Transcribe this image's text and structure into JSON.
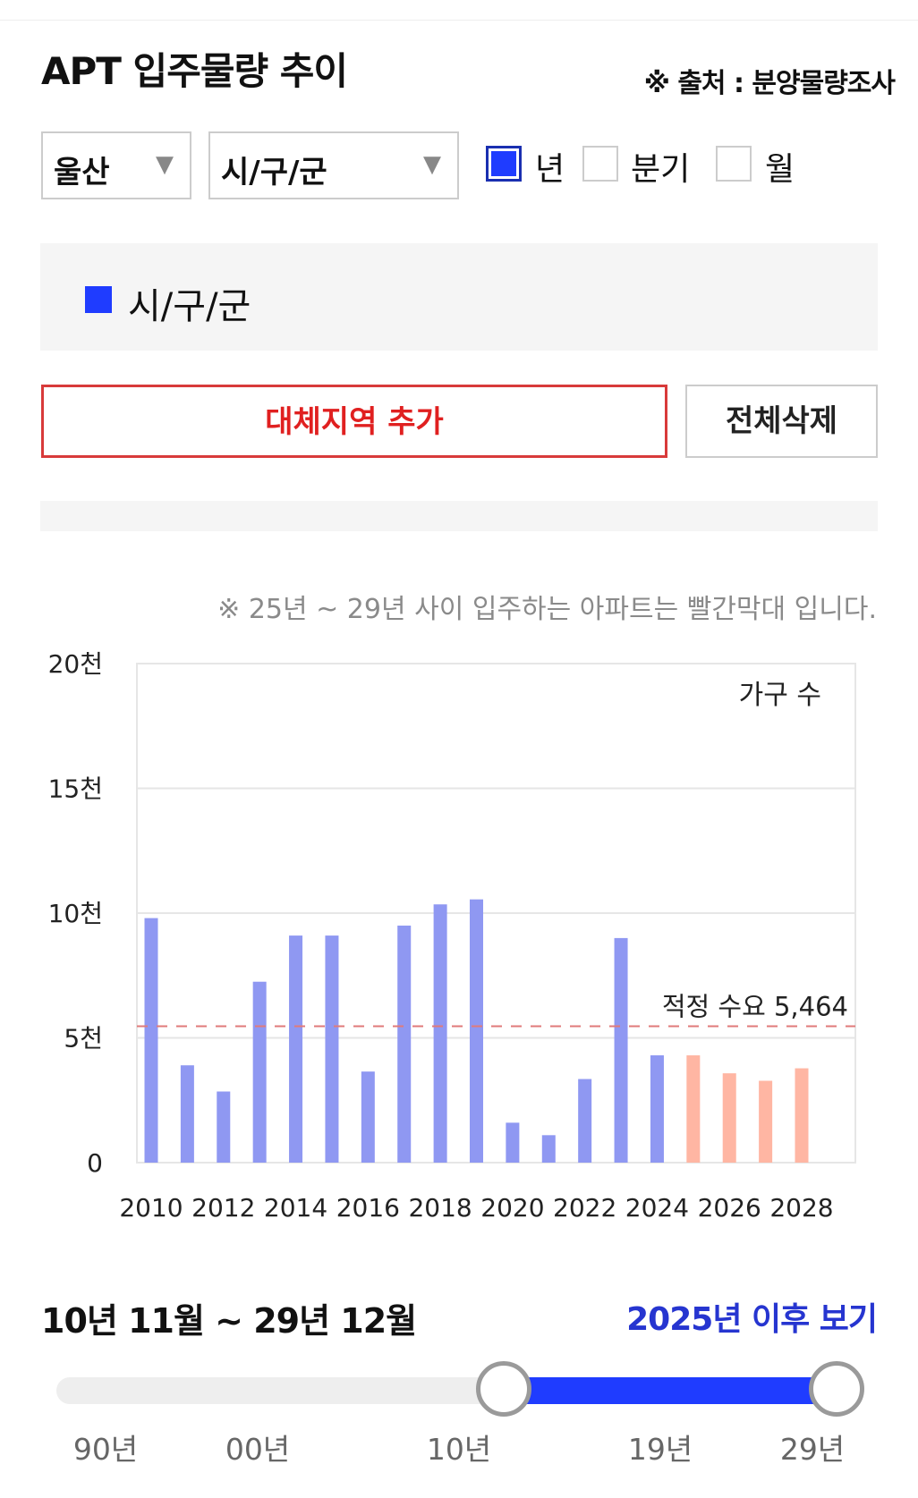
{
  "header": {
    "title": "APT 입주물량 추이",
    "source": "※ 출처 : 분양물량조사"
  },
  "filters": {
    "region": "울산",
    "district": "시/구/군",
    "periods": [
      {
        "label": "년",
        "checked": true
      },
      {
        "label": "분기",
        "checked": false
      },
      {
        "label": "월",
        "checked": false
      }
    ]
  },
  "legend": {
    "label": "시/구/군",
    "color": "#1f3cff"
  },
  "buttons": {
    "add_region": "대체지역 추가",
    "delete_all": "전체삭제"
  },
  "note": "※ 25년 ~ 29년 사이 입주하는 아파트는 빨간막대 입니다.",
  "chart_data": {
    "type": "bar",
    "categories": [
      "2010",
      "2011",
      "2012",
      "2013",
      "2014",
      "2015",
      "2016",
      "2017",
      "2018",
      "2019",
      "2020",
      "2021",
      "2022",
      "2023",
      "2024",
      "2025",
      "2026",
      "2027",
      "2028"
    ],
    "series": [
      {
        "name": "시/구/군",
        "values": [
          9800,
          3900,
          2850,
          7250,
          9100,
          9100,
          3650,
          9500,
          10350,
          10550,
          1600,
          1100,
          3350,
          9000,
          4300,
          4300,
          3580,
          3280,
          3780
        ]
      }
    ],
    "forecast_categories": [
      "2025",
      "2026",
      "2027",
      "2028"
    ],
    "colors": {
      "actual": "#8f98f2",
      "forecast": "#ffb6a3"
    },
    "ylim": [
      0,
      20000
    ],
    "yticks": [
      0,
      5000,
      10000,
      15000,
      20000
    ],
    "ytick_labels": [
      "0",
      "5천",
      "10천",
      "15천",
      "20천"
    ],
    "xtick_labels": [
      "2010",
      "2012",
      "2014",
      "2016",
      "2018",
      "2020",
      "2022",
      "2024",
      "2026",
      "2028"
    ],
    "ylabel": "가구 수",
    "reference_line": {
      "value": 5464,
      "label": "적정 수요 5,464",
      "color": "#e07a7a"
    },
    "grid": true
  },
  "range": {
    "label": "10년 11월 ~ 29년 12월",
    "after_link": "2025년 이후 보기",
    "ticks": [
      "90년",
      "00년",
      "10년",
      "19년",
      "29년"
    ],
    "selected": [
      "10년",
      "29년"
    ]
  }
}
